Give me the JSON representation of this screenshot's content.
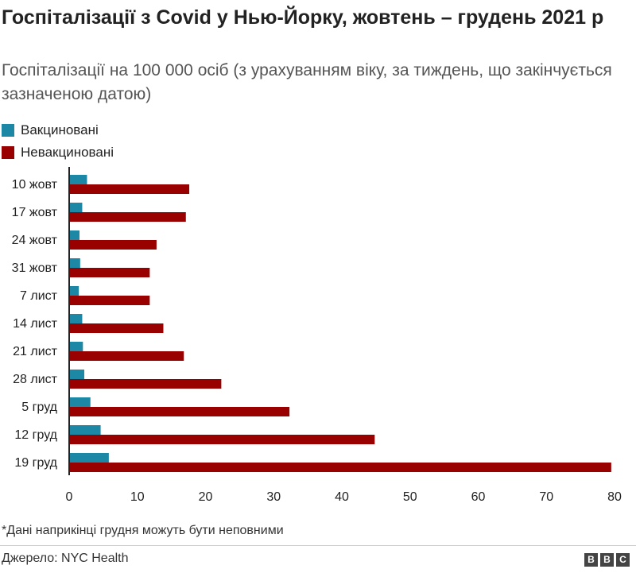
{
  "title": "Госпіталізації з Covid у Нью-Йорку, жовтень – грудень 2021 р",
  "subtitle": "Госпіталізації на 100 000 осіб (з урахуванням віку, за тиждень, що закінчується зазначеною датою)",
  "footnote": "*Дані наприкінці грудня можуть бути неповними",
  "source": "Джерело: NYC Health",
  "logo": [
    "B",
    "B",
    "C"
  ],
  "colors": {
    "vaccinated": "#1d87a6",
    "unvaccinated": "#990000"
  },
  "chart_data": {
    "type": "bar",
    "orientation": "horizontal",
    "categories": [
      "10 жовт",
      "17 жовт",
      "24 жовт",
      "31 жовт",
      "7 лист",
      "14 лист",
      "21 лист",
      "28 лист",
      "5 груд",
      "12 груд",
      "19 груд"
    ],
    "series": [
      {
        "name": "Вакциновані",
        "values": [
          2.5,
          1.8,
          1.4,
          1.5,
          1.3,
          1.8,
          1.9,
          2.1,
          3.0,
          4.5,
          5.7
        ]
      },
      {
        "name": "Невакциновані",
        "values": [
          17.5,
          17.0,
          12.7,
          11.7,
          11.7,
          13.7,
          16.7,
          22.2,
          32.2,
          44.7,
          79.4
        ]
      }
    ],
    "xlim": [
      0,
      80
    ],
    "xticks": [
      0,
      10,
      20,
      30,
      40,
      50,
      60,
      70,
      80
    ],
    "title": "Госпіталізації з Covid у Нью-Йорку, жовтень – грудень 2021 р",
    "xlabel": "",
    "ylabel": ""
  }
}
